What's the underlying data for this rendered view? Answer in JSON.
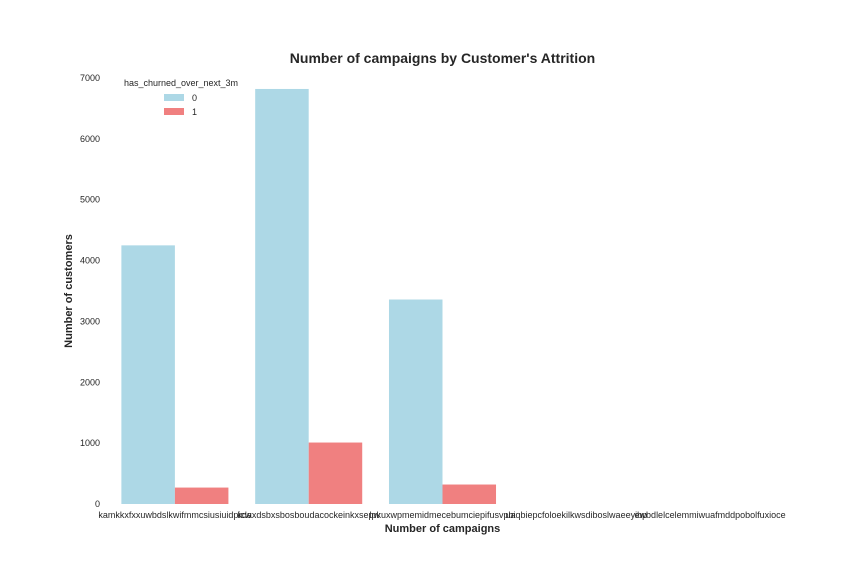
{
  "chart_data": {
    "type": "bar",
    "title": "Number of campaigns by Customer's Attrition",
    "xlabel": "Number of campaigns",
    "ylabel": "Number of customers",
    "categories": [
      "kamkkxfxxuwbdslkwifmmcsiusiuidpicw",
      "kdaxdsbxsbosboudacockeinkxsepw",
      "lpkuxwpmemidmecebumciepifusvpbi",
      "uaqbiepcfoloekilkwsdiboslwaeeyibp",
      "ewbdlelcelemmiwuafmddpobolfuxioce"
    ],
    "series": [
      {
        "name": "0",
        "color": "#add8e6",
        "values": [
          4250,
          6820,
          3360,
          0,
          0
        ]
      },
      {
        "name": "1",
        "color": "#f08080",
        "values": [
          270,
          1010,
          320,
          0,
          0
        ]
      }
    ],
    "ylim": [
      0,
      7000
    ],
    "yticks": [
      0,
      1000,
      2000,
      3000,
      4000,
      5000,
      6000,
      7000
    ],
    "legend": {
      "title": "has_churned_over_next_3m",
      "placement": "top-left"
    },
    "grid": false
  }
}
